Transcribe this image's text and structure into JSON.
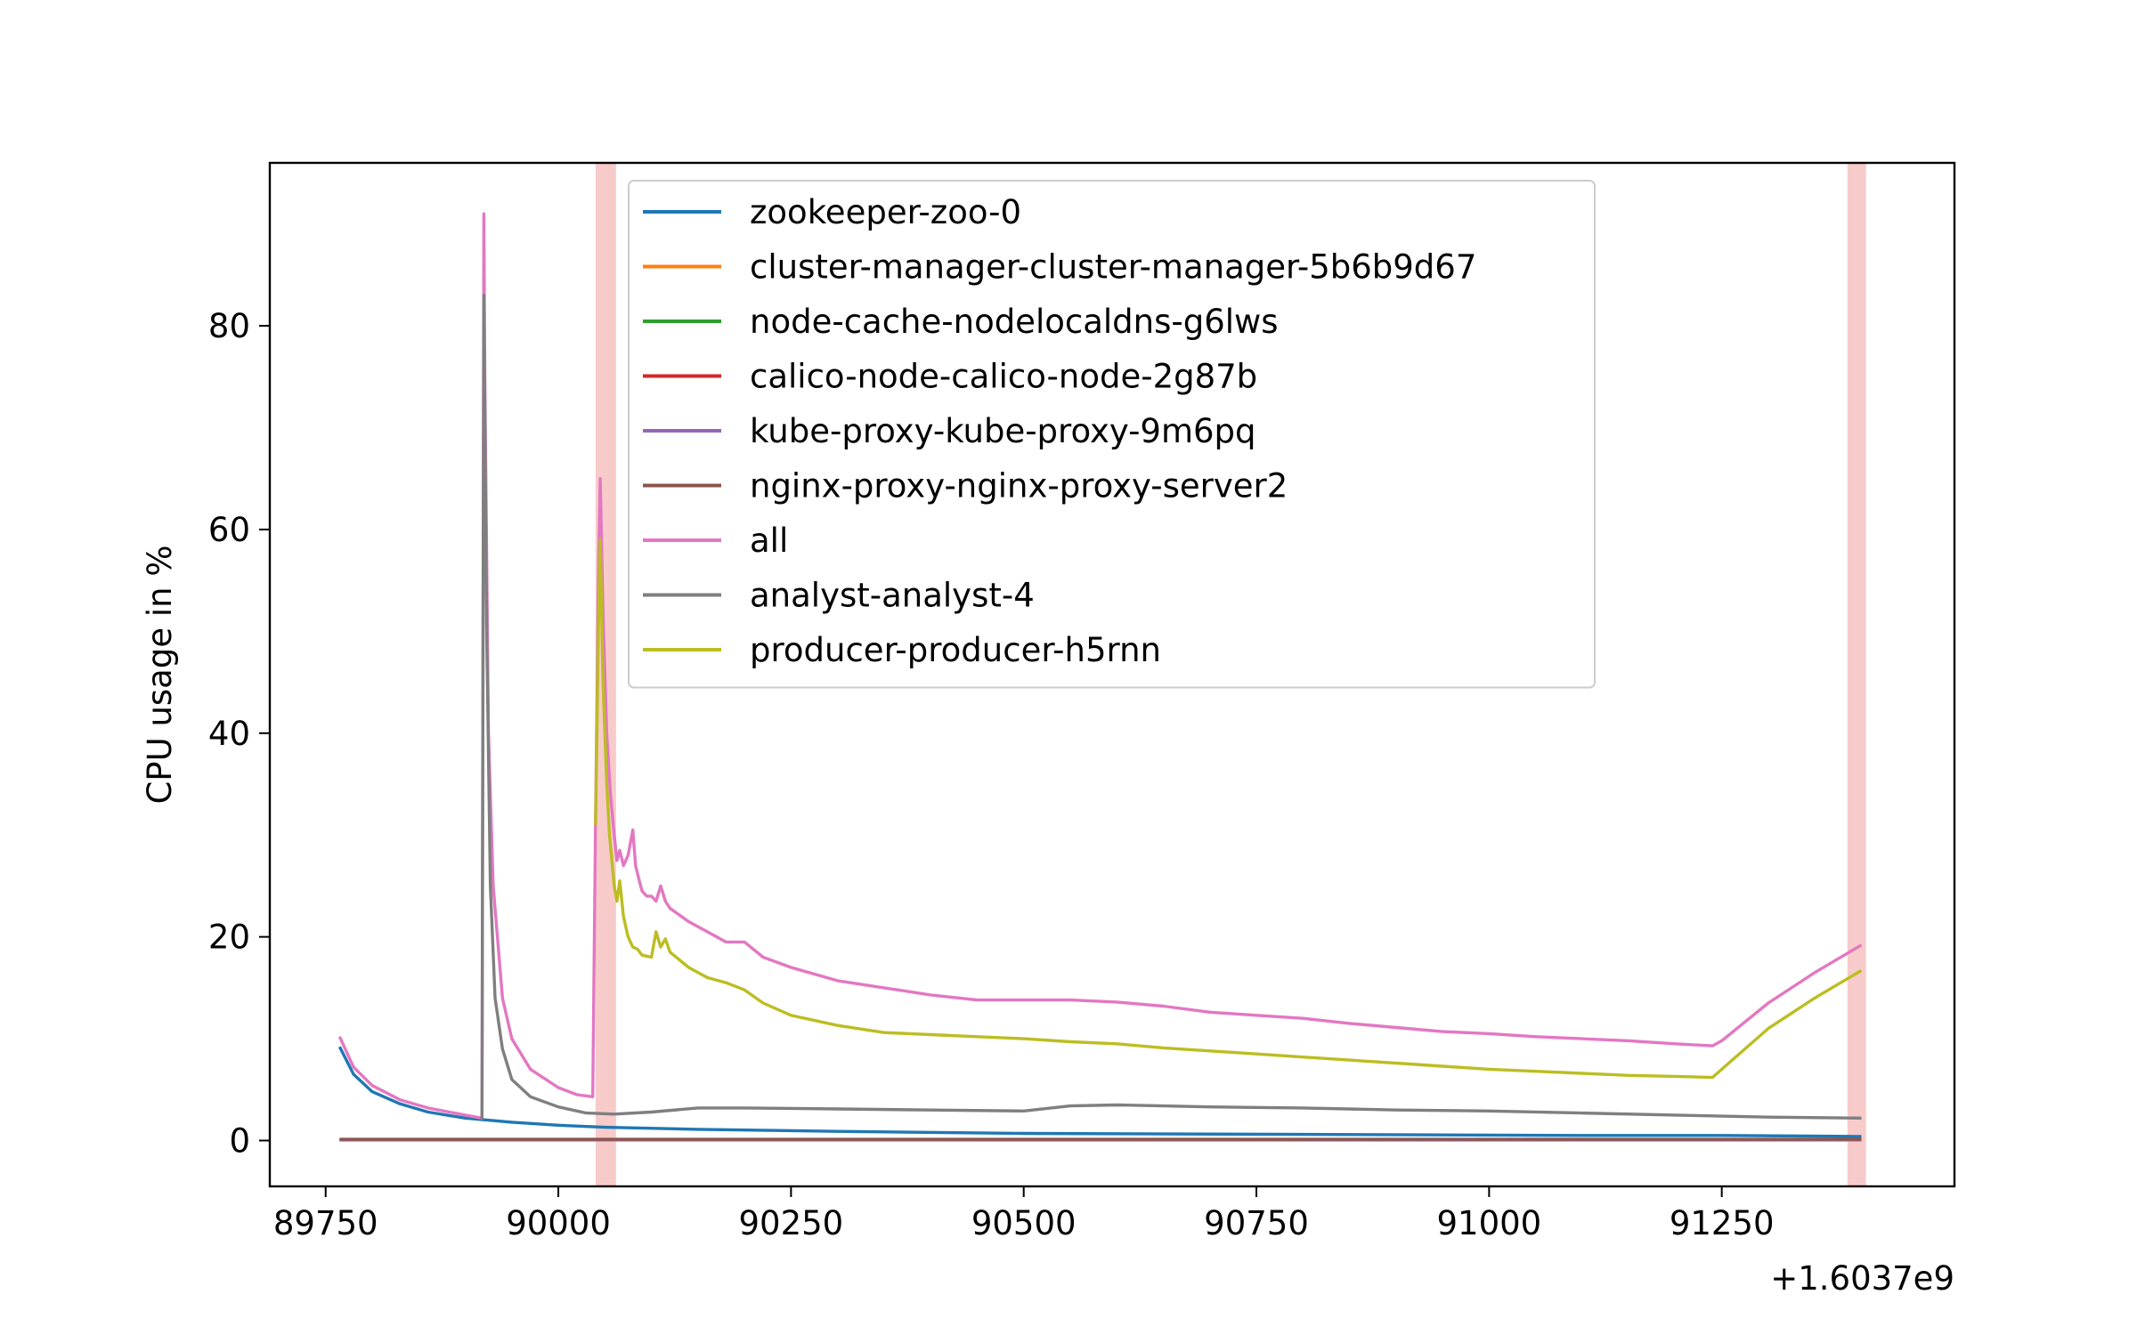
{
  "chart_data": {
    "type": "line",
    "title": "",
    "xlabel": "",
    "ylabel": "CPU usage in %",
    "x_offset_label": "+1.6037e9",
    "xlim": [
      89690,
      91500
    ],
    "ylim": [
      -4.5,
      96
    ],
    "xticks": [
      89750,
      90000,
      90250,
      90500,
      90750,
      91000,
      91250
    ],
    "yticks": [
      0,
      20,
      40,
      60,
      80
    ],
    "grid": false,
    "legend_position": "upper-center",
    "highlight_bands": [
      {
        "x0": 90040,
        "x1": 90062,
        "color": "#f4a9a8"
      },
      {
        "x0": 91385,
        "x1": 91405,
        "color": "#f4a9a8"
      }
    ],
    "series": [
      {
        "name": "zookeeper-zoo-0",
        "color": "#1f77b4",
        "x": [
          89765,
          89780,
          89800,
          89830,
          89860,
          89900,
          89950,
          90000,
          90050,
          90150,
          90300,
          90500,
          90800,
          91100,
          91250,
          91400
        ],
        "y": [
          9.2,
          6.5,
          4.8,
          3.6,
          2.8,
          2.2,
          1.8,
          1.5,
          1.3,
          1.1,
          0.9,
          0.7,
          0.6,
          0.5,
          0.5,
          0.4
        ]
      },
      {
        "name": "cluster-manager-cluster-manager-5b6b9d67",
        "color": "#ff7f0e",
        "x": [
          89765,
          91400
        ],
        "y": [
          0.05,
          0.05
        ]
      },
      {
        "name": "node-cache-nodelocaldns-g6lws",
        "color": "#2ca02c",
        "x": [
          89765,
          91400
        ],
        "y": [
          0.08,
          0.08
        ]
      },
      {
        "name": "calico-node-calico-node-2g87b",
        "color": "#d62728",
        "x": [
          89765,
          91400
        ],
        "y": [
          0.1,
          0.1
        ]
      },
      {
        "name": "kube-proxy-kube-proxy-9m6pq",
        "color": "#9467bd",
        "x": [
          89765,
          91400
        ],
        "y": [
          0.06,
          0.06
        ]
      },
      {
        "name": "nginx-proxy-nginx-proxy-server2",
        "color": "#8c564b",
        "x": [
          89765,
          91400
        ],
        "y": [
          0.12,
          0.12
        ]
      },
      {
        "name": "all",
        "color": "#e377c2",
        "x": [
          89765,
          89780,
          89800,
          89830,
          89860,
          89900,
          89918,
          89920,
          89921,
          89925,
          89930,
          89940,
          89950,
          89970,
          90000,
          90020,
          90037,
          90040,
          90043,
          90045,
          90048,
          90052,
          90056,
          90060,
          90063,
          90066,
          90070,
          90075,
          90080,
          90083,
          90087,
          90090,
          90095,
          90100,
          90105,
          90110,
          90115,
          90120,
          90140,
          90160,
          90180,
          90200,
          90220,
          90250,
          90300,
          90350,
          90400,
          90450,
          90500,
          90550,
          90600,
          90650,
          90700,
          90750,
          90800,
          90850,
          90900,
          90950,
          91000,
          91050,
          91100,
          91150,
          91200,
          91240,
          91250,
          91300,
          91350,
          91400
        ],
        "y": [
          10.2,
          7.2,
          5.4,
          4.0,
          3.2,
          2.5,
          2.2,
          91,
          75,
          40,
          25,
          14,
          10,
          7,
          5.2,
          4.5,
          4.3,
          32,
          55,
          65,
          52,
          40,
          34,
          30,
          27.5,
          28.5,
          27,
          28,
          30.5,
          27,
          25.5,
          24.5,
          24,
          24,
          23.5,
          25,
          23.5,
          22.8,
          21.5,
          20.5,
          19.5,
          19.5,
          18,
          17,
          15.7,
          15,
          14.3,
          13.8,
          13.8,
          13.8,
          13.6,
          13.2,
          12.6,
          12.3,
          12,
          11.5,
          11.1,
          10.7,
          10.5,
          10.2,
          10,
          9.8,
          9.5,
          9.3,
          9.8,
          13.5,
          16.5,
          19.2
        ]
      },
      {
        "name": "analyst-analyst-4",
        "color": "#7f7f7f",
        "x": [
          89918,
          89920,
          89923,
          89927,
          89932,
          89940,
          89950,
          89970,
          90000,
          90030,
          90060,
          90100,
          90150,
          90200,
          90300,
          90400,
          90500,
          90550,
          90600,
          90650,
          90700,
          90800,
          90900,
          91000,
          91100,
          91200,
          91300,
          91400
        ],
        "y": [
          2.1,
          83,
          50,
          25,
          14,
          9,
          6,
          4.3,
          3.3,
          2.7,
          2.6,
          2.8,
          3.2,
          3.2,
          3.1,
          3.0,
          2.9,
          3.4,
          3.5,
          3.4,
          3.3,
          3.2,
          3.0,
          2.9,
          2.7,
          2.5,
          2.3,
          2.2
        ]
      },
      {
        "name": "producer-producer-h5rnn",
        "color": "#bcbd22",
        "x": [
          90040,
          90043,
          90045,
          90048,
          90052,
          90055,
          90060,
          90063,
          90066,
          90070,
          90075,
          90080,
          90085,
          90090,
          90100,
          90105,
          90110,
          90115,
          90120,
          90140,
          90160,
          90180,
          90200,
          90220,
          90250,
          90300,
          90350,
          90400,
          90450,
          90500,
          90550,
          90600,
          90650,
          90700,
          90750,
          90800,
          90850,
          90900,
          90950,
          91000,
          91050,
          91100,
          91150,
          91200,
          91240,
          91250,
          91300,
          91350,
          91400
        ],
        "y": [
          31,
          50,
          59,
          45,
          35,
          30,
          25,
          23.5,
          25.5,
          22,
          20,
          19,
          18.8,
          18.2,
          18,
          20.5,
          19,
          19.8,
          18.5,
          17,
          16,
          15.5,
          14.8,
          13.5,
          12.3,
          11.3,
          10.6,
          10.4,
          10.2,
          10.0,
          9.7,
          9.5,
          9.1,
          8.8,
          8.5,
          8.2,
          7.9,
          7.6,
          7.3,
          7.0,
          6.8,
          6.6,
          6.4,
          6.3,
          6.2,
          7.0,
          11,
          14,
          16.7
        ]
      }
    ]
  }
}
